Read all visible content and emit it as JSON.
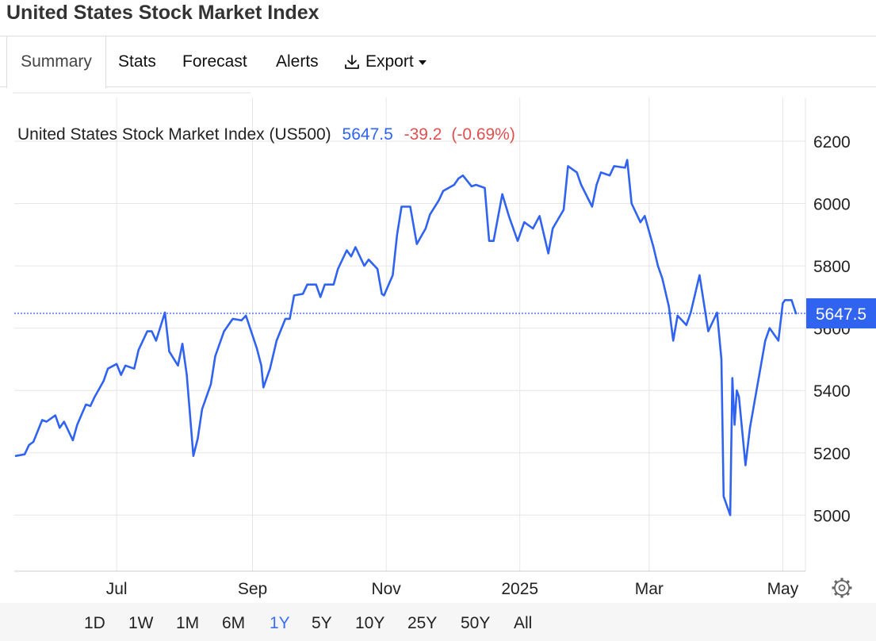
{
  "page": {
    "title": "United States Stock Market Index"
  },
  "tabs": [
    {
      "label": "Summary",
      "active": true
    },
    {
      "label": "Stats"
    },
    {
      "label": "Forecast"
    },
    {
      "label": "Alerts"
    },
    {
      "label": "Export",
      "icon": "download-icon"
    }
  ],
  "ranges": [
    {
      "label": "1D"
    },
    {
      "label": "1W"
    },
    {
      "label": "1M"
    },
    {
      "label": "6M"
    },
    {
      "label": "1Y",
      "active": true
    },
    {
      "label": "5Y"
    },
    {
      "label": "10Y"
    },
    {
      "label": "25Y"
    },
    {
      "label": "50Y"
    },
    {
      "label": "All"
    }
  ],
  "colors": {
    "line": "#2f63f0",
    "negative": "#e05050",
    "price_tag": "#2f63f0",
    "grid": "#e6e6e6",
    "accent": "#3b6ff0"
  },
  "chart_data": {
    "type": "line",
    "title": "United States Stock Market Index (US500)",
    "last_value": "5647.5",
    "change": "-39.2",
    "change_pct": "(-0.69%)",
    "price_tag": "5647.5",
    "x_labels": [
      "Jul",
      "Sep",
      "Nov",
      "2025",
      "Mar",
      "May"
    ],
    "ylim": [
      4820,
      6340
    ],
    "yticks": [
      5000,
      5200,
      5400,
      5600,
      5800,
      6000,
      6200
    ],
    "grid": true,
    "last_value_line": 5647.5,
    "settings_icon": "gear-icon",
    "x": [
      "2024-05-16",
      "2024-05-20",
      "2024-05-22",
      "2024-05-24",
      "2024-05-28",
      "2024-05-30",
      "2024-06-03",
      "2024-06-05",
      "2024-06-07",
      "2024-06-11",
      "2024-06-13",
      "2024-06-17",
      "2024-06-19",
      "2024-06-21",
      "2024-06-25",
      "2024-06-27",
      "2024-07-01",
      "2024-07-03",
      "2024-07-05",
      "2024-07-09",
      "2024-07-11",
      "2024-07-15",
      "2024-07-17",
      "2024-07-19",
      "2024-07-23",
      "2024-07-25",
      "2024-07-29",
      "2024-07-31",
      "2024-08-02",
      "2024-08-05",
      "2024-08-07",
      "2024-08-09",
      "2024-08-13",
      "2024-08-15",
      "2024-08-19",
      "2024-08-21",
      "2024-08-23",
      "2024-08-27",
      "2024-08-29",
      "2024-09-03",
      "2024-09-05",
      "2024-09-06",
      "2024-09-09",
      "2024-09-12",
      "2024-09-16",
      "2024-09-18",
      "2024-09-20",
      "2024-09-24",
      "2024-09-26",
      "2024-09-30",
      "2024-10-02",
      "2024-10-04",
      "2024-10-08",
      "2024-10-10",
      "2024-10-14",
      "2024-10-16",
      "2024-10-18",
      "2024-10-22",
      "2024-10-24",
      "2024-10-28",
      "2024-10-30",
      "2024-10-31",
      "2024-11-04",
      "2024-11-06",
      "2024-11-08",
      "2024-11-12",
      "2024-11-15",
      "2024-11-19",
      "2024-11-21",
      "2024-11-25",
      "2024-11-27",
      "2024-12-02",
      "2024-12-04",
      "2024-12-06",
      "2024-12-10",
      "2024-12-12",
      "2024-12-16",
      "2024-12-18",
      "2024-12-20",
      "2024-12-24",
      "2024-12-27",
      "2024-12-31",
      "2025-01-03",
      "2025-01-07",
      "2025-01-10",
      "2025-01-14",
      "2025-01-16",
      "2025-01-21",
      "2025-01-23",
      "2025-01-27",
      "2025-01-29",
      "2025-02-03",
      "2025-02-05",
      "2025-02-07",
      "2025-02-11",
      "2025-02-13",
      "2025-02-18",
      "2025-02-19",
      "2025-02-21",
      "2025-02-25",
      "2025-02-27",
      "2025-03-03",
      "2025-03-05",
      "2025-03-07",
      "2025-03-10",
      "2025-03-12",
      "2025-03-14",
      "2025-03-18",
      "2025-03-20",
      "2025-03-24",
      "2025-03-26",
      "2025-03-28",
      "2025-04-01",
      "2025-04-03",
      "2025-04-04",
      "2025-04-07",
      "2025-04-08",
      "2025-04-09",
      "2025-04-10",
      "2025-04-11",
      "2025-04-14",
      "2025-04-16",
      "2025-04-21",
      "2025-04-23",
      "2025-04-25",
      "2025-04-29",
      "2025-05-01",
      "2025-05-02",
      "2025-05-05",
      "2025-05-07"
    ],
    "series": [
      {
        "values": [
          5190,
          5195,
          5225,
          5235,
          5305,
          5300,
          5320,
          5280,
          5300,
          5240,
          5290,
          5355,
          5350,
          5380,
          5430,
          5470,
          5485,
          5450,
          5480,
          5470,
          5530,
          5590,
          5590,
          5560,
          5650,
          5525,
          5480,
          5550,
          5450,
          5190,
          5245,
          5340,
          5420,
          5510,
          5590,
          5610,
          5630,
          5625,
          5640,
          5535,
          5480,
          5410,
          5470,
          5560,
          5630,
          5630,
          5705,
          5710,
          5740,
          5740,
          5700,
          5740,
          5740,
          5790,
          5850,
          5830,
          5860,
          5800,
          5820,
          5790,
          5710,
          5705,
          5770,
          5900,
          5990,
          5990,
          5870,
          5920,
          5965,
          6010,
          6040,
          6060,
          6080,
          6090,
          6055,
          6060,
          6050,
          5880,
          5880,
          6030,
          5960,
          5880,
          5940,
          5920,
          5960,
          5840,
          5920,
          5980,
          6120,
          6100,
          6060,
          5990,
          6060,
          6100,
          6090,
          6120,
          6115,
          6140,
          6000,
          5940,
          5960,
          5860,
          5800,
          5760,
          5670,
          5560,
          5640,
          5610,
          5650,
          5770,
          5680,
          5590,
          5650,
          5500,
          5060,
          5000,
          5440,
          5290,
          5400,
          5380,
          5160,
          5280,
          5480,
          5560,
          5600,
          5560,
          5680,
          5690,
          5690,
          5647.5
        ]
      }
    ]
  }
}
